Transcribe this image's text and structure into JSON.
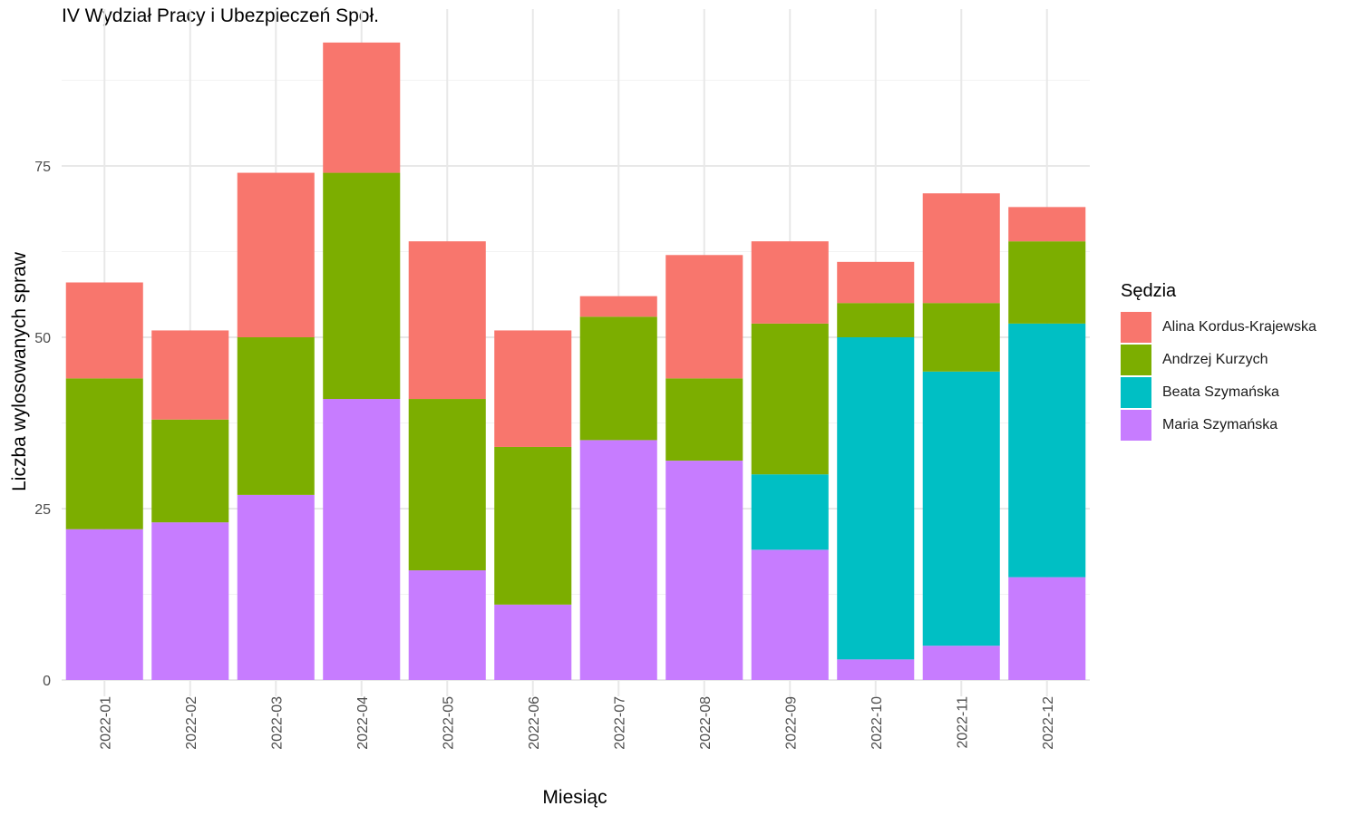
{
  "chart_data": {
    "type": "bar",
    "stacked": true,
    "title": "IV Wydział Pracy i Ubezpieczeń Społ.",
    "xlabel": "Miesiąc",
    "ylabel": "Liczba wylosowanych spraw",
    "ylim": [
      0,
      95
    ],
    "yticks": [
      0,
      25,
      50,
      75
    ],
    "grid": true,
    "legend_title": "Sędzia",
    "legend_position": "right",
    "categories": [
      "2022-01",
      "2022-02",
      "2022-03",
      "2022-04",
      "2022-05",
      "2022-06",
      "2022-07",
      "2022-08",
      "2022-09",
      "2022-10",
      "2022-11",
      "2022-12"
    ],
    "series": [
      {
        "name": "Alina Kordus-Krajewska",
        "color": "#F8766D",
        "values": [
          14,
          13,
          24,
          19,
          23,
          17,
          3,
          18,
          12,
          6,
          16,
          5
        ]
      },
      {
        "name": "Andrzej Kurzych",
        "color": "#7CAE00",
        "values": [
          22,
          15,
          23,
          33,
          25,
          23,
          18,
          12,
          22,
          5,
          10,
          12
        ]
      },
      {
        "name": "Beata Szymańska",
        "color": "#00BFC4",
        "values": [
          0,
          0,
          0,
          0,
          0,
          0,
          0,
          0,
          11,
          47,
          40,
          37
        ]
      },
      {
        "name": "Maria Szymańska",
        "color": "#C77CFF",
        "values": [
          22,
          23,
          27,
          41,
          16,
          11,
          35,
          32,
          19,
          3,
          5,
          15
        ]
      }
    ]
  }
}
